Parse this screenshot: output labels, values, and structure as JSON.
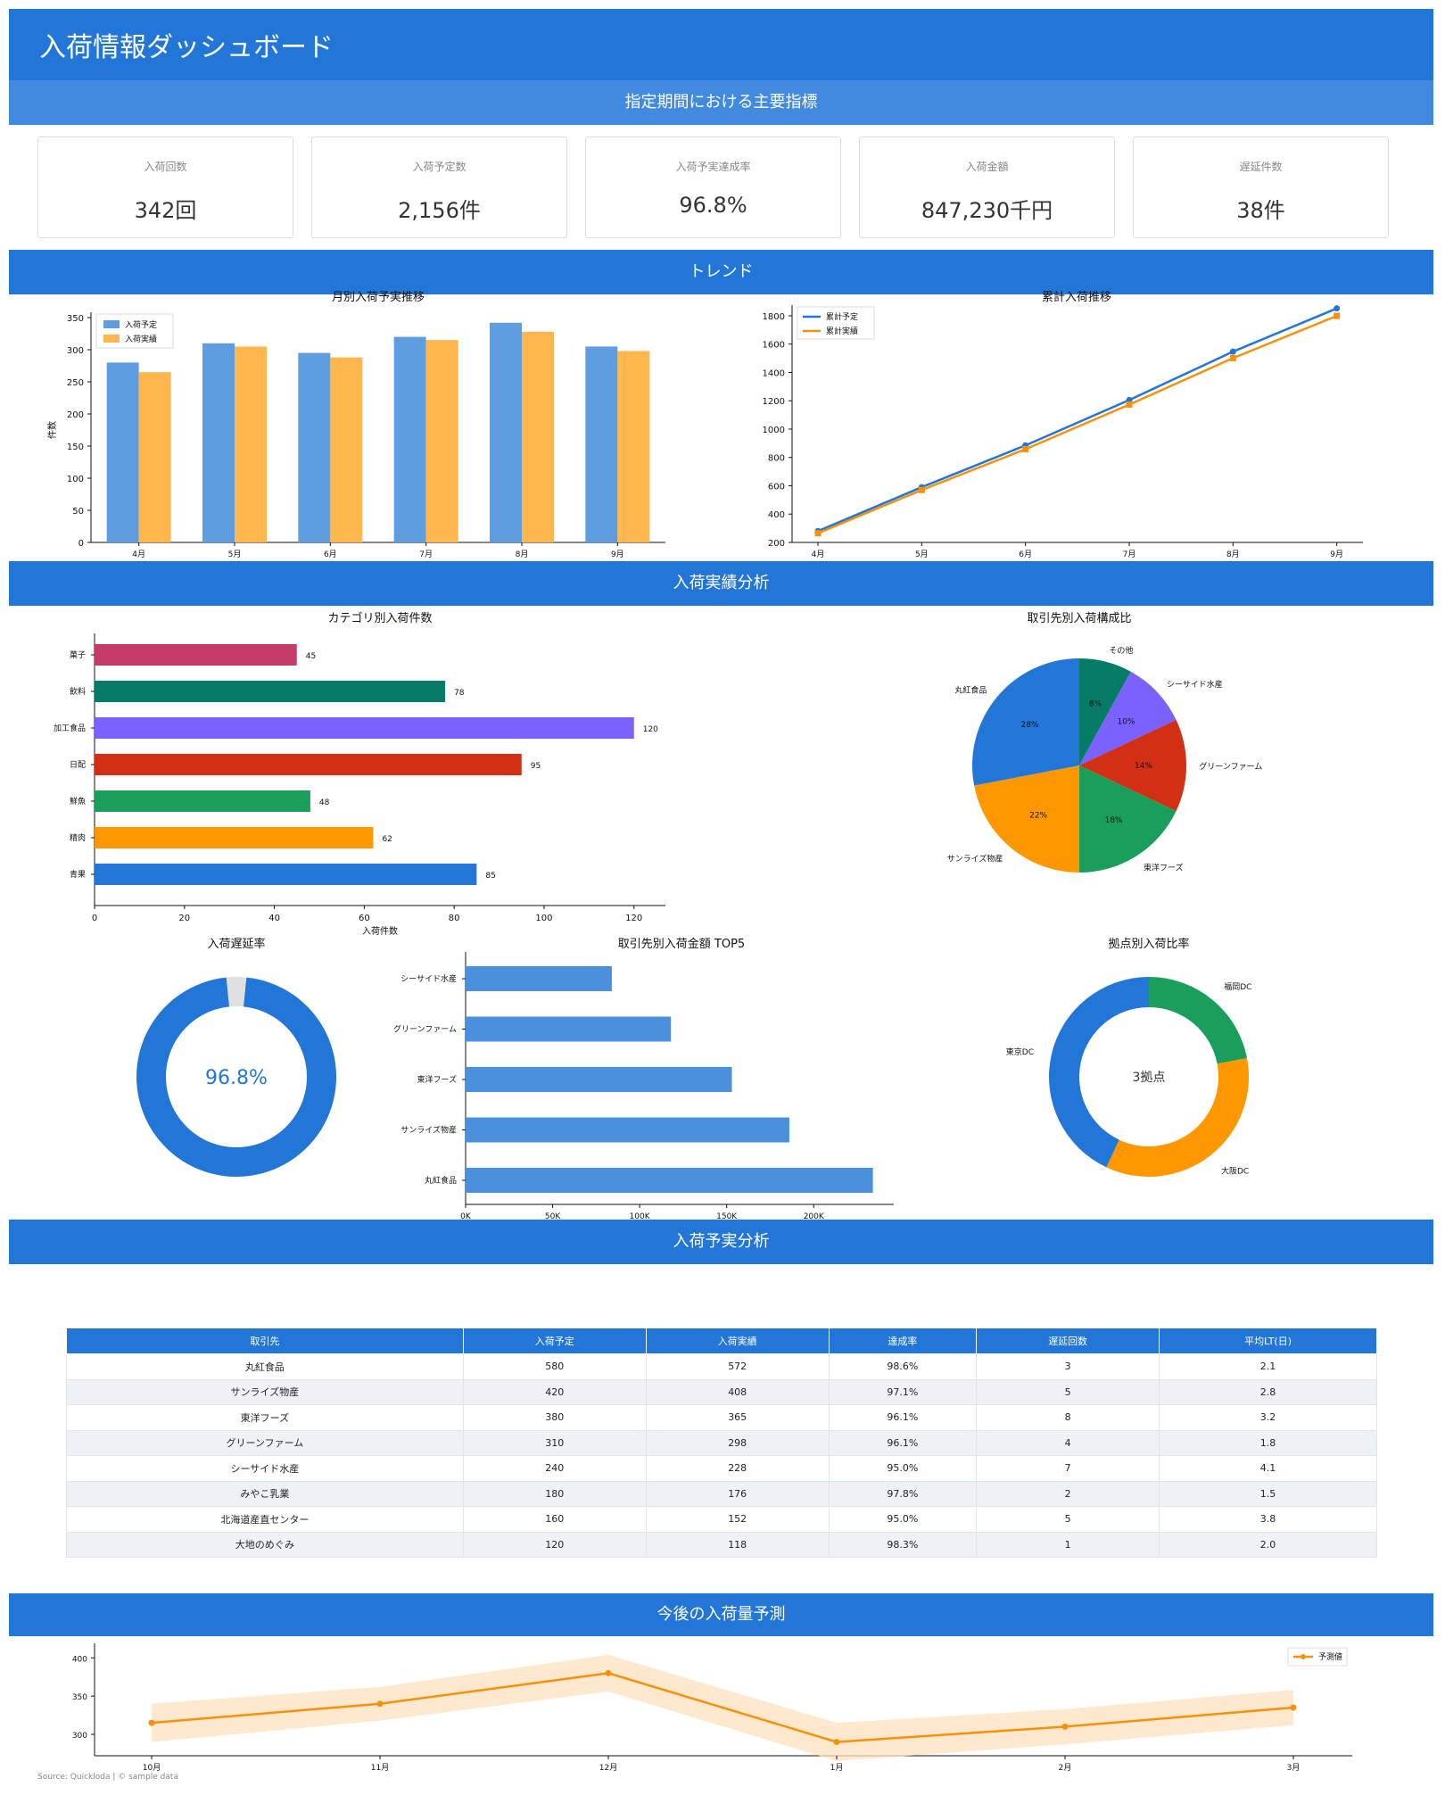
{
  "header": {
    "title": "入荷情報ダッシュボード"
  },
  "sections": {
    "kpi": "指定期間における主要指標",
    "trend": "トレンド",
    "analysis": "入荷実績分析",
    "plan_vs_actual": "入荷予実分析",
    "forecast": "今後の入荷量予測"
  },
  "kpis": [
    {
      "label": "入荷回数",
      "value": "342回"
    },
    {
      "label": "入荷予定数",
      "value": "2,156件"
    },
    {
      "label": "入荷予実達成率",
      "value": "96.8%"
    },
    {
      "label": "入荷金額",
      "value": "847,230千円"
    },
    {
      "label": "遅延件数",
      "value": "38件"
    }
  ],
  "colors": {
    "primary": "#2176d8",
    "plan_bar": "#5e9de0",
    "actual_bar": "#ffb74d",
    "orange": "#f7900a"
  },
  "chart_data": [
    {
      "id": "monthly",
      "type": "bar",
      "title": "月別入荷予実推移",
      "categories": [
        "4月",
        "5月",
        "6月",
        "7月",
        "8月",
        "9月"
      ],
      "series": [
        {
          "name": "入荷予定",
          "values": [
            280,
            310,
            295,
            320,
            342,
            305
          ]
        },
        {
          "name": "入荷実績",
          "values": [
            265,
            305,
            288,
            315,
            328,
            298
          ]
        }
      ],
      "ylabel": "件数",
      "ylim": [
        0,
        350
      ],
      "yticks": [
        0,
        50,
        100,
        150,
        200,
        250,
        300,
        350
      ],
      "legend": "top-left"
    },
    {
      "id": "cumulative",
      "type": "line",
      "title": "累計入荷推移",
      "categories": [
        "4月",
        "5月",
        "6月",
        "7月",
        "8月",
        "9月"
      ],
      "series": [
        {
          "name": "累計予定",
          "values": [
            280,
            590,
            885,
            1205,
            1547,
            1852
          ]
        },
        {
          "name": "累計実績",
          "values": [
            265,
            570,
            858,
            1173,
            1501,
            1799
          ]
        }
      ],
      "ylim": [
        200,
        1850
      ],
      "yticks": [
        200,
        400,
        600,
        800,
        1000,
        1200,
        1400,
        1600,
        1800
      ],
      "legend": "top-left"
    },
    {
      "id": "category",
      "type": "bar",
      "orientation": "horizontal",
      "title": "カテゴリ別入荷件数",
      "categories": [
        "菓子",
        "飲料",
        "加工食品",
        "日配",
        "鮮魚",
        "精肉",
        "青果"
      ],
      "values": [
        45,
        78,
        120,
        95,
        48,
        62,
        85
      ],
      "colors": [
        "#c43c6a",
        "#067c67",
        "#7b61ff",
        "#d32f14",
        "#1a9e5b",
        "#ff9800",
        "#2176d8"
      ],
      "xlabel": "入荷件数",
      "xlim": [
        0,
        127
      ],
      "xticks": [
        0,
        20,
        40,
        60,
        80,
        100,
        120
      ]
    },
    {
      "id": "supplier_share",
      "type": "pie",
      "title": "取引先別入荷構成比",
      "labels": [
        "丸紅食品",
        "サンライズ物産",
        "東洋フーズ",
        "グリーンファーム",
        "シーサイド水産",
        "その他"
      ],
      "values": [
        28,
        22,
        18,
        14,
        10,
        8
      ],
      "colors": [
        "#2176d8",
        "#ff9800",
        "#1a9e5b",
        "#d32f14",
        "#7b61ff",
        "#067c67"
      ]
    },
    {
      "id": "delay_rate",
      "type": "pie",
      "title": "入荷遅延率",
      "center_label": "96.8%",
      "values": [
        96.8,
        3.2
      ],
      "colors": [
        "#2176d8",
        "#e0e0e0"
      ]
    },
    {
      "id": "top5",
      "type": "bar",
      "orientation": "horizontal",
      "title": "取引先別入荷金額 TOP5",
      "categories": [
        "シーサイド水産",
        "グリーンファーム",
        "東洋フーズ",
        "サンライズ物産",
        "丸紅食品"
      ],
      "values": [
        84000,
        118000,
        153000,
        186000,
        234000
      ],
      "xlim": [
        0,
        246000
      ],
      "xticks": [
        0,
        50000,
        100000,
        150000,
        200000
      ],
      "xticklabels": [
        "0K",
        "50K",
        "100K",
        "150K",
        "200K"
      ],
      "color": "#4a90dd"
    },
    {
      "id": "hub_ratio",
      "type": "pie",
      "title": "拠点別入荷比率",
      "center_label": "3拠点",
      "labels": [
        "福岡DC",
        "大阪DC",
        "東京DC"
      ],
      "values": [
        22,
        35,
        43
      ],
      "colors": [
        "#1a9e5b",
        "#ff9800",
        "#2176d8"
      ]
    },
    {
      "id": "forecast",
      "type": "line",
      "categories": [
        "10月",
        "11月",
        "12月",
        "1月",
        "2月",
        "3月"
      ],
      "series": [
        {
          "name": "予測値",
          "values": [
            315,
            340,
            380,
            290,
            310,
            335
          ]
        }
      ],
      "band": {
        "lower": [
          290,
          318,
          356,
          265,
          287,
          312
        ],
        "upper": [
          340,
          362,
          404,
          315,
          333,
          358
        ]
      },
      "ylim": [
        272,
        412
      ],
      "yticks": [
        300,
        350,
        400
      ],
      "legend": "top-right"
    }
  ],
  "table": {
    "headers": [
      "取引先",
      "入荷予定",
      "入荷実績",
      "達成率",
      "遅延回数",
      "平均LT(日)"
    ],
    "rows": [
      [
        "丸紅食品",
        "580",
        "572",
        "98.6%",
        "3",
        "2.1"
      ],
      [
        "サンライズ物産",
        "420",
        "408",
        "97.1%",
        "5",
        "2.8"
      ],
      [
        "東洋フーズ",
        "380",
        "365",
        "96.1%",
        "8",
        "3.2"
      ],
      [
        "グリーンファーム",
        "310",
        "298",
        "96.1%",
        "4",
        "1.8"
      ],
      [
        "シーサイド水産",
        "240",
        "228",
        "95.0%",
        "7",
        "4.1"
      ],
      [
        "みやこ乳業",
        "180",
        "176",
        "97.8%",
        "2",
        "1.5"
      ],
      [
        "北海道産直センター",
        "160",
        "152",
        "95.0%",
        "5",
        "3.8"
      ],
      [
        "大地のめぐみ",
        "120",
        "118",
        "98.3%",
        "1",
        "2.0"
      ]
    ]
  },
  "footer": {
    "source": "Source: Quickloda | © sample data"
  }
}
